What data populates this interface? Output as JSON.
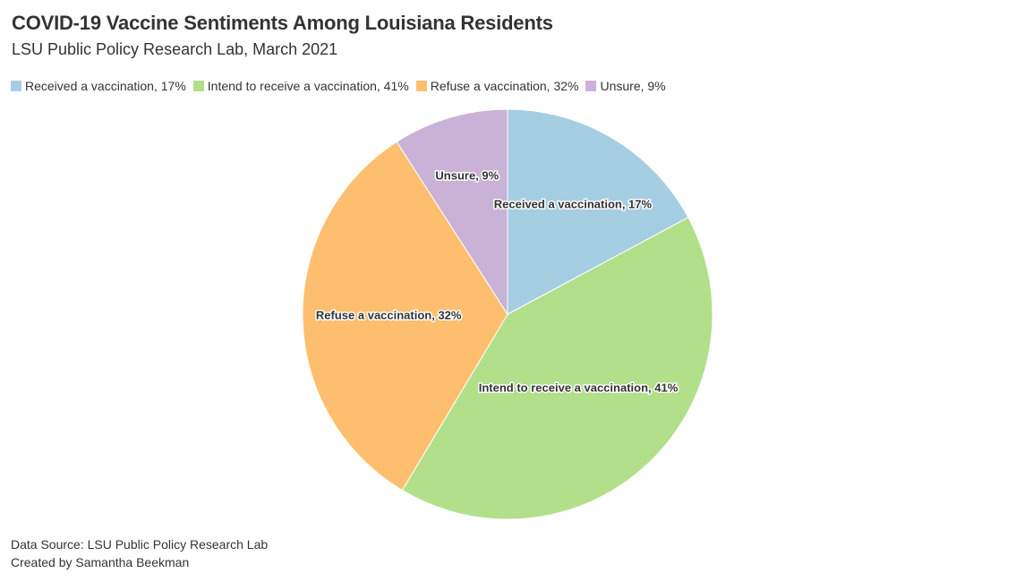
{
  "header": {
    "title": "COVID-19 Vaccine Sentiments Among Louisiana Residents",
    "subtitle": "LSU Public Policy Research Lab, March 2021"
  },
  "footer": {
    "source": "Data Source: LSU Public Policy Research Lab",
    "credit": "Created by Samantha Beekman"
  },
  "chart_data": {
    "type": "pie",
    "title": "COVID-19 Vaccine Sentiments Among Louisiana Residents",
    "subtitle": "LSU Public Policy Research Lab, March 2021",
    "legend_position": "top-left",
    "slices": [
      {
        "label": "Received a vaccination",
        "value": 17,
        "display": "Received a vaccination, 17%",
        "color": "#a6cee3"
      },
      {
        "label": "Intend to receive a vaccination",
        "value": 41,
        "display": "Intend to receive a vaccination, 41%",
        "color": "#b2df8a"
      },
      {
        "label": "Refuse a vaccination",
        "value": 32,
        "display": "Refuse a vaccination, 32%",
        "color": "#fdbf6f"
      },
      {
        "label": "Unsure",
        "value": 9,
        "display": "Unsure, 9%",
        "color": "#cab2d6"
      }
    ]
  }
}
